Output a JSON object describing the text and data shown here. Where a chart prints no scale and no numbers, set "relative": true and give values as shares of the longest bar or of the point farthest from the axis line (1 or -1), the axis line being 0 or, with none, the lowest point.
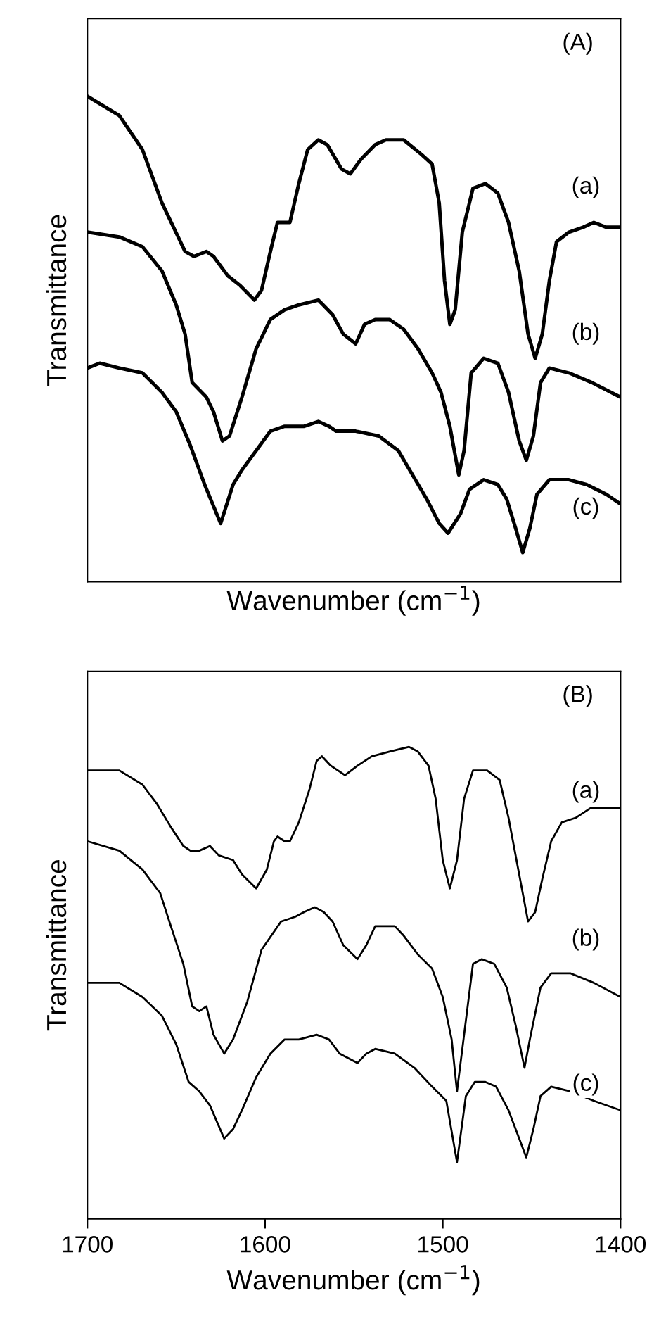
{
  "chart_data": [
    {
      "type": "line",
      "relative": true,
      "xlabel": "Wavenumber (cm$^{−1}$)",
      "ylabel": "Transmittance",
      "xlim": [
        1700,
        1400
      ],
      "tick_labels": false,
      "grid": false,
      "legend": false,
      "marker": "none",
      "line_style": "solid",
      "annotations": [
        "(A)",
        "(a)",
        "(b)",
        "(c)"
      ],
      "series": [
        {
          "color": "#000000",
          "x": [
            1700,
            1682,
            1669,
            1658,
            1645,
            1640,
            1633,
            1629,
            1621,
            1614,
            1606,
            1602,
            1597,
            1593,
            1586,
            1581,
            1576,
            1570,
            1565,
            1557,
            1552,
            1546,
            1538,
            1532,
            1522,
            1512,
            1506,
            1502,
            1499,
            1496,
            1493,
            1489,
            1483,
            1476,
            1469,
            1463,
            1457,
            1452,
            1448,
            1444,
            1440,
            1436,
            1429,
            1421,
            1415,
            1408,
            1400
          ],
          "values": [
            1.0,
            0.96,
            0.89,
            0.78,
            0.68,
            0.67,
            0.68,
            0.67,
            0.63,
            0.61,
            0.58,
            0.6,
            0.68,
            0.74,
            0.74,
            0.82,
            0.89,
            0.91,
            0.9,
            0.85,
            0.84,
            0.87,
            0.9,
            0.91,
            0.91,
            0.88,
            0.86,
            0.78,
            0.62,
            0.53,
            0.56,
            0.72,
            0.81,
            0.82,
            0.8,
            0.74,
            0.64,
            0.51,
            0.46,
            0.51,
            0.62,
            0.7,
            0.72,
            0.73,
            0.74,
            0.73,
            0.73
          ]
        },
        {
          "color": "#000000",
          "x": [
            1700,
            1682,
            1669,
            1658,
            1650,
            1645,
            1641,
            1633,
            1629,
            1624,
            1620,
            1613,
            1605,
            1597,
            1589,
            1581,
            1570,
            1562,
            1556,
            1549,
            1544,
            1538,
            1530,
            1522,
            1514,
            1506,
            1501,
            1496,
            1491,
            1488,
            1484,
            1477,
            1469,
            1463,
            1457,
            1453,
            1449,
            1445,
            1440,
            1429,
            1416,
            1400
          ],
          "values": [
            0.72,
            0.71,
            0.69,
            0.64,
            0.57,
            0.51,
            0.41,
            0.38,
            0.35,
            0.29,
            0.3,
            0.38,
            0.48,
            0.54,
            0.56,
            0.57,
            0.58,
            0.55,
            0.51,
            0.49,
            0.53,
            0.54,
            0.54,
            0.52,
            0.48,
            0.43,
            0.39,
            0.32,
            0.22,
            0.27,
            0.43,
            0.46,
            0.45,
            0.39,
            0.29,
            0.25,
            0.3,
            0.41,
            0.44,
            0.43,
            0.41,
            0.38
          ]
        },
        {
          "color": "#000000",
          "x": [
            1700,
            1693,
            1682,
            1669,
            1658,
            1650,
            1642,
            1634,
            1625,
            1618,
            1613,
            1605,
            1597,
            1589,
            1578,
            1570,
            1564,
            1560,
            1549,
            1536,
            1525,
            1517,
            1509,
            1502,
            1497,
            1490,
            1485,
            1477,
            1469,
            1464,
            1459,
            1455,
            1451,
            1447,
            1440,
            1429,
            1419,
            1408,
            1400
          ],
          "values": [
            0.44,
            0.45,
            0.44,
            0.43,
            0.39,
            0.35,
            0.28,
            0.2,
            0.12,
            0.2,
            0.23,
            0.27,
            0.31,
            0.32,
            0.32,
            0.33,
            0.32,
            0.31,
            0.31,
            0.3,
            0.27,
            0.22,
            0.17,
            0.12,
            0.1,
            0.14,
            0.19,
            0.21,
            0.2,
            0.17,
            0.11,
            0.06,
            0.11,
            0.18,
            0.21,
            0.21,
            0.2,
            0.18,
            0.16
          ]
        }
      ]
    },
    {
      "type": "line",
      "relative": true,
      "xlabel": "Wavenumber (cm$^{−1}$)",
      "ylabel": "Transmittance",
      "xlim": [
        1700,
        1400
      ],
      "xticks": [
        1700,
        1600,
        1500,
        1400
      ],
      "tick_labels": "x",
      "grid": false,
      "legend": false,
      "marker": "none",
      "line_style": "solid",
      "annotations": [
        "(B)",
        "(a)",
        "(b)",
        "(c)"
      ],
      "series": [
        {
          "color": "#000000",
          "x": [
            1700,
            1682,
            1669,
            1661,
            1653,
            1646,
            1642,
            1637,
            1631,
            1626,
            1618,
            1613,
            1605,
            1599,
            1595,
            1593,
            1589,
            1586,
            1581,
            1575,
            1571,
            1568,
            1563,
            1555,
            1548,
            1540,
            1530,
            1519,
            1514,
            1508,
            1504,
            1500,
            1496,
            1492,
            1488,
            1483,
            1475,
            1468,
            1463,
            1457,
            1452,
            1448,
            1444,
            1439,
            1433,
            1425,
            1417,
            1409,
            1400
          ],
          "values": [
            0.95,
            0.95,
            0.92,
            0.88,
            0.83,
            0.79,
            0.78,
            0.78,
            0.79,
            0.77,
            0.76,
            0.73,
            0.7,
            0.74,
            0.8,
            0.81,
            0.8,
            0.8,
            0.84,
            0.91,
            0.97,
            0.98,
            0.96,
            0.94,
            0.96,
            0.98,
            0.99,
            1.0,
            0.99,
            0.96,
            0.89,
            0.76,
            0.7,
            0.76,
            0.89,
            0.95,
            0.95,
            0.93,
            0.85,
            0.73,
            0.63,
            0.65,
            0.72,
            0.8,
            0.84,
            0.85,
            0.87,
            0.87,
            0.87
          ]
        },
        {
          "color": "#000000",
          "x": [
            1700,
            1682,
            1669,
            1659,
            1653,
            1646,
            1641,
            1637,
            1633,
            1629,
            1623,
            1618,
            1610,
            1602,
            1591,
            1583,
            1578,
            1572,
            1567,
            1562,
            1556,
            1548,
            1543,
            1538,
            1527,
            1522,
            1514,
            1506,
            1500,
            1495,
            1492,
            1488,
            1483,
            1478,
            1471,
            1464,
            1459,
            1454,
            1451,
            1445,
            1439,
            1428,
            1415,
            1400
          ],
          "values": [
            0.8,
            0.78,
            0.74,
            0.69,
            0.62,
            0.54,
            0.45,
            0.44,
            0.45,
            0.39,
            0.35,
            0.38,
            0.46,
            0.57,
            0.63,
            0.64,
            0.65,
            0.66,
            0.65,
            0.63,
            0.58,
            0.55,
            0.58,
            0.62,
            0.62,
            0.6,
            0.56,
            0.53,
            0.47,
            0.38,
            0.27,
            0.39,
            0.54,
            0.55,
            0.54,
            0.49,
            0.41,
            0.32,
            0.38,
            0.49,
            0.52,
            0.52,
            0.5,
            0.47
          ]
        },
        {
          "color": "#000000",
          "x": [
            1700,
            1682,
            1669,
            1658,
            1650,
            1643,
            1637,
            1631,
            1623,
            1618,
            1613,
            1605,
            1597,
            1589,
            1581,
            1571,
            1564,
            1558,
            1548,
            1543,
            1538,
            1527,
            1516,
            1506,
            1498,
            1492,
            1487,
            1482,
            1476,
            1470,
            1463,
            1457,
            1453,
            1449,
            1445,
            1439,
            1428,
            1415,
            1400
          ],
          "values": [
            0.5,
            0.5,
            0.47,
            0.43,
            0.37,
            0.29,
            0.27,
            0.24,
            0.17,
            0.19,
            0.23,
            0.3,
            0.35,
            0.38,
            0.38,
            0.39,
            0.38,
            0.35,
            0.33,
            0.35,
            0.36,
            0.35,
            0.32,
            0.28,
            0.25,
            0.12,
            0.26,
            0.29,
            0.29,
            0.28,
            0.23,
            0.17,
            0.13,
            0.19,
            0.26,
            0.28,
            0.27,
            0.25,
            0.23
          ]
        }
      ]
    }
  ]
}
